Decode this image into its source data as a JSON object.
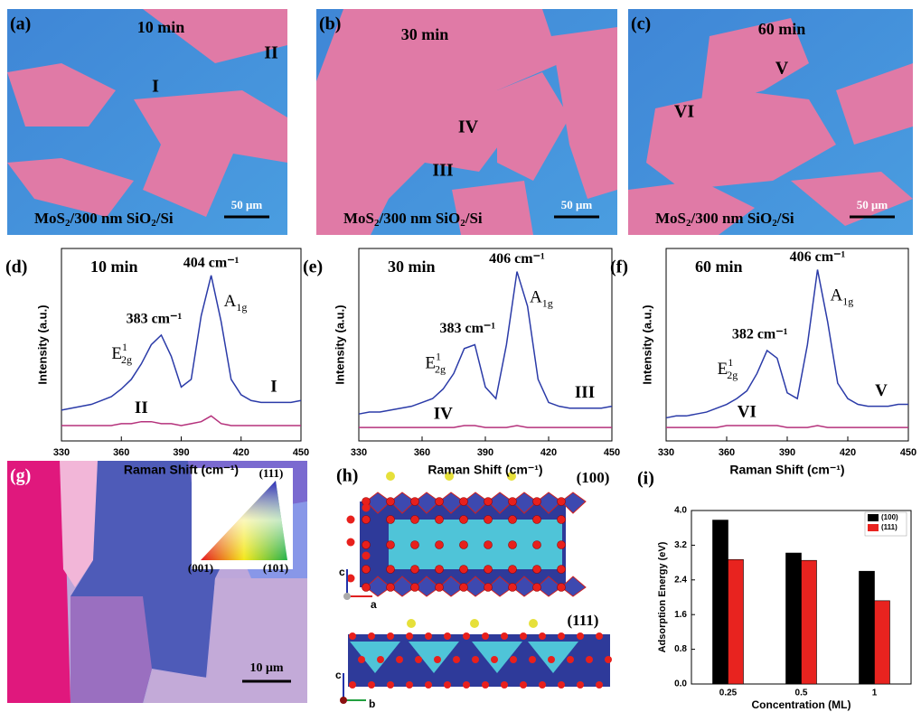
{
  "panels": [
    {
      "label": "(a)",
      "time": "10 min",
      "regions": [
        "I",
        "II"
      ],
      "caption": [
        "MoS",
        "2",
        "/300 nm SiO",
        "2",
        "/Si"
      ],
      "scale": "50 μm"
    },
    {
      "label": "(b)",
      "time": "30 min",
      "regions": [
        "IV",
        "III"
      ],
      "caption": [
        "MoS",
        "2",
        "/300 nm SiO",
        "2",
        "/Si"
      ],
      "scale": "50 μm"
    },
    {
      "label": "(c)",
      "time": "60 min",
      "regions": [
        "V",
        "VI"
      ],
      "caption": [
        "MoS",
        "2",
        "/300 nm SiO",
        "2",
        "/Si"
      ],
      "scale": "50 μm"
    }
  ],
  "ebsd": {
    "label": "(g)",
    "inset": [
      "(111)",
      "(001)",
      "(101)"
    ],
    "scale": "10 μm"
  },
  "structure": {
    "label": "(h)",
    "facets": [
      "(100)",
      "(111)"
    ],
    "axes": [
      "c",
      "a",
      "c",
      "b"
    ]
  },
  "chart_data": [
    {
      "type": "line",
      "label": "(d)",
      "time": "10 min",
      "peak_labels": [
        "383 cm⁻¹",
        "404 cm⁻¹"
      ],
      "modes": [
        {
          "base": "E",
          "sup": "1",
          "sub": "2g"
        },
        {
          "base": "A",
          "sub": "1g"
        }
      ],
      "x_label": "Raman Shift (cm⁻¹)",
      "y_label": "Intensity (a.u.)",
      "x": [
        330,
        335,
        340,
        345,
        350,
        355,
        360,
        365,
        370,
        375,
        380,
        385,
        390,
        395,
        400,
        405,
        410,
        415,
        420,
        425,
        430,
        435,
        440,
        445,
        450
      ],
      "series": [
        {
          "name": "I",
          "color": "#2b3ba8",
          "values": [
            16,
            17,
            18,
            19,
            21,
            23,
            27,
            32,
            40,
            50,
            55,
            44,
            28,
            32,
            65,
            86,
            62,
            32,
            24,
            21,
            20,
            20,
            20,
            20,
            21
          ]
        },
        {
          "name": "II",
          "color": "#b5327c",
          "values": [
            8,
            8,
            8,
            8,
            8,
            8,
            9,
            9,
            10,
            10,
            9,
            9,
            8,
            9,
            10,
            13,
            9,
            8,
            8,
            8,
            8,
            8,
            8,
            8,
            8
          ]
        }
      ],
      "xlim": [
        330,
        450
      ],
      "xticks": [
        330,
        360,
        390,
        420,
        450
      ],
      "ylim": [
        0,
        100
      ]
    },
    {
      "type": "line",
      "label": "(e)",
      "time": "30 min",
      "peak_labels": [
        "383 cm⁻¹",
        "406 cm⁻¹"
      ],
      "modes": [
        {
          "base": "E",
          "sup": "1",
          "sub": "2g"
        },
        {
          "base": "A",
          "sub": "1g"
        }
      ],
      "x_label": "Raman Shift (cm⁻¹)",
      "y_label": "Intensity (a.u.)",
      "x": [
        330,
        335,
        340,
        345,
        350,
        355,
        360,
        365,
        370,
        375,
        380,
        385,
        390,
        395,
        400,
        405,
        410,
        415,
        420,
        425,
        430,
        435,
        440,
        445,
        450
      ],
      "series": [
        {
          "name": "III",
          "color": "#2b3ba8",
          "values": [
            14,
            15,
            15,
            16,
            17,
            18,
            20,
            22,
            27,
            35,
            48,
            50,
            28,
            22,
            50,
            88,
            70,
            32,
            20,
            18,
            17,
            17,
            17,
            17,
            18
          ]
        },
        {
          "name": "IV",
          "color": "#b5327c",
          "values": [
            7,
            7,
            7,
            7,
            7,
            7,
            7,
            7,
            7,
            7,
            8,
            8,
            7,
            7,
            7,
            8,
            7,
            7,
            7,
            7,
            7,
            7,
            7,
            7,
            7
          ]
        }
      ],
      "xlim": [
        330,
        450
      ],
      "xticks": [
        330,
        360,
        390,
        420,
        450
      ],
      "ylim": [
        0,
        100
      ]
    },
    {
      "type": "line",
      "label": "(f)",
      "time": "60 min",
      "peak_labels": [
        "382 cm⁻¹",
        "406 cm⁻¹"
      ],
      "modes": [
        {
          "base": "E",
          "sup": "1",
          "sub": "2g"
        },
        {
          "base": "A",
          "sub": "1g"
        }
      ],
      "x_label": "Raman Shift (cm⁻¹)",
      "y_label": "Intensity (a.u.)",
      "x": [
        330,
        335,
        340,
        345,
        350,
        355,
        360,
        365,
        370,
        375,
        380,
        385,
        390,
        395,
        400,
        405,
        410,
        415,
        420,
        425,
        430,
        435,
        440,
        445,
        450
      ],
      "series": [
        {
          "name": "V",
          "color": "#2b3ba8",
          "values": [
            12,
            13,
            13,
            14,
            15,
            17,
            19,
            22,
            26,
            35,
            47,
            43,
            25,
            22,
            50,
            89,
            62,
            30,
            22,
            19,
            18,
            18,
            18,
            19,
            19
          ]
        },
        {
          "name": "VI",
          "color": "#b5327c",
          "values": [
            7,
            7,
            7,
            7,
            7,
            7,
            8,
            8,
            8,
            8,
            8,
            8,
            7,
            7,
            7,
            8,
            7,
            7,
            7,
            7,
            7,
            7,
            7,
            7,
            7
          ]
        }
      ],
      "xlim": [
        330,
        450
      ],
      "xticks": [
        330,
        360,
        390,
        420,
        450
      ],
      "ylim": [
        0,
        100
      ]
    },
    {
      "type": "bar",
      "label": "(i)",
      "categories": [
        "0.25",
        "0.5",
        "1"
      ],
      "x_label": "Concentration (ML)",
      "y_label": "Adsorption Energy (eV)",
      "series": [
        {
          "name": "(100)",
          "color": "#000000",
          "values": [
            3.78,
            3.02,
            2.6
          ]
        },
        {
          "name": "(111)",
          "color": "#e8231f",
          "values": [
            2.87,
            2.85,
            1.92
          ]
        }
      ],
      "ylim": [
        0,
        4
      ],
      "yticks": [
        {
          "value": 0,
          "label": "0.0"
        },
        0.8,
        1.6,
        2.4,
        3.2,
        {
          "value": 4,
          "label": "4.0"
        }
      ],
      "legend": "upper-right"
    }
  ]
}
